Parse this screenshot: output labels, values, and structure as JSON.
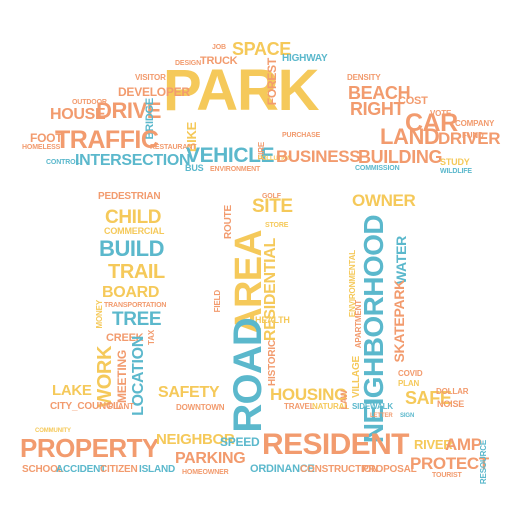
{
  "word_cloud": {
    "colors": {
      "orange": "#f29b6e",
      "yellow": "#f5c95a",
      "blue": "#5bb8cc"
    },
    "words": {
      "park": "PARK",
      "space": "SPACE",
      "truck": "TRUCK",
      "forest": "FOREST",
      "highway": "HIGHWAY",
      "developer": "DEVELOPER",
      "drive": "DRIVE",
      "house": "HOUSE",
      "bridge": "BRIDGE",
      "traffic": "TRAFFIC",
      "foot": "FOOT",
      "bike": "BIKE",
      "intersection": "INTERSECTION",
      "vehicle": "VEHICLE",
      "business": "BUSINESS",
      "beach": "BEACH",
      "right": "RIGHT",
      "car": "CAR",
      "land": "LAND",
      "driver": "DRIVER",
      "building": "BUILDING",
      "pedestrian": "PEDESTRIAN",
      "child": "CHILD",
      "build": "BUILD",
      "trail": "TRAIL",
      "board": "BOARD",
      "tree": "TREE",
      "work": "WORK",
      "location": "LOCATION",
      "road": "ROAD",
      "area": "AREA",
      "site": "SITE",
      "residential": "RESIDENTIAL",
      "historic": "HISTORIC",
      "owner": "OWNER",
      "neighborhood": "NEIGHBORHOOD",
      "water": "WATER",
      "skatepark": "SKATEPARK",
      "safe": "SAFE",
      "lake": "LAKE",
      "city_council": "CITY_COUNCIL",
      "safety": "SAFETY",
      "housing": "HOUSING",
      "property": "PROPERTY",
      "neighbor": "NEIGHBOR",
      "parking": "PARKING",
      "resident": "RESIDENT",
      "river": "RIVER",
      "amp": "AMP",
      "protect": "PROTECT",
      "speed": "SPEED",
      "school": "SCHOOL",
      "accident": "ACCIDENT",
      "citizen": "CITIZEN",
      "island": "ISLAND",
      "ordinance": "ORDINANCE",
      "construction": "CONSTRUCTION",
      "proposal": "PROPOSAL",
      "cost": "COST",
      "company": "COMPANY",
      "commercial": "COMMERCIAL",
      "transportation": "TRANSPORTATION",
      "creek": "CREEK",
      "meeting": "MEETING",
      "health": "HEALTH",
      "village": "VILLAGE",
      "apartment": "APARTMENT",
      "environmental": "ENVIRONMENTAL",
      "downtown": "DOWNTOWN",
      "natural": "NATURAL",
      "sidewalk": "SIDEWALK",
      "noise": "NOISE",
      "dollar": "DOLLAR",
      "travel": "TRAVEL",
      "environment": "ENVIRONMENT",
      "restaurant": "RESTAURANT",
      "bus": "BUS",
      "fire": "FIRE",
      "visitor": "VISITOR",
      "outdoor": "OUTDOOR",
      "density": "DENSITY",
      "vote": "VOTE",
      "study": "STUDY",
      "wildlife": "WILDLIFE",
      "route": "ROUTE",
      "golf": "GOLF",
      "field": "FIELD",
      "law": "LAW",
      "plan": "PLAN",
      "store": "STORE",
      "money": "MONEY",
      "covid": "COVID",
      "fund": "FUND",
      "plant": "PLANT",
      "job": "JOB",
      "design": "DESIGN",
      "homeless": "HOMELESS",
      "control": "CONTROL",
      "commission": "COMMISSION",
      "purchase": "PURCHASE",
      "pollution": "POLLUTION",
      "tax": "TAX",
      "homeowner": "HOMEOWNER",
      "resource": "RESOURCE",
      "tourist": "TOURIST",
      "community": "COMMUNITY",
      "letter": "LETTER",
      "sign": "SIGN"
    }
  }
}
